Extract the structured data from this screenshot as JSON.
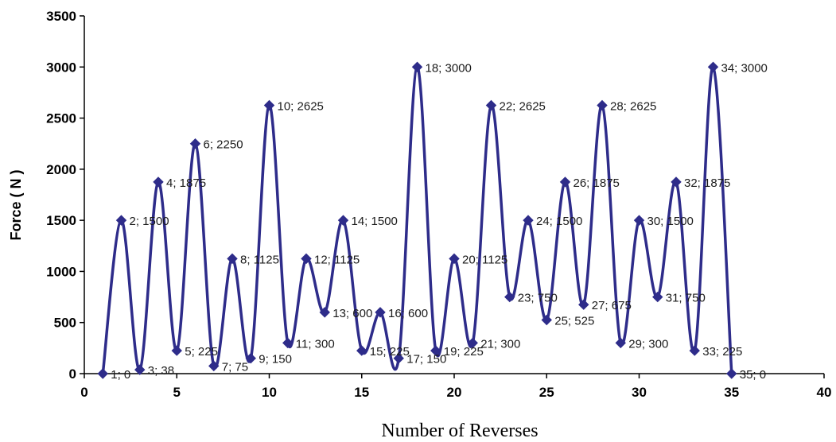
{
  "chart_data": {
    "type": "line",
    "xlabel": "Number of Reverses",
    "ylabel": "Force ( N )",
    "xlim": [
      0,
      40
    ],
    "ylim": [
      0,
      3500
    ],
    "x_ticks": [
      0,
      5,
      10,
      15,
      20,
      25,
      30,
      35,
      40
    ],
    "y_ticks": [
      0,
      500,
      1000,
      1500,
      2000,
      2500,
      3000,
      3500
    ],
    "line_style": "smoothed",
    "marker": "diamond",
    "color": "#2e2c8a",
    "grid": false,
    "legend": "none",
    "points": [
      {
        "x": 1,
        "y": 0,
        "label": "1; 0"
      },
      {
        "x": 2,
        "y": 1500,
        "label": "2; 1500"
      },
      {
        "x": 3,
        "y": 38,
        "label": "3; 38"
      },
      {
        "x": 4,
        "y": 1875,
        "label": "4; 1875"
      },
      {
        "x": 5,
        "y": 225,
        "label": "5; 225"
      },
      {
        "x": 6,
        "y": 2250,
        "label": "6; 2250"
      },
      {
        "x": 7,
        "y": 75,
        "label": "7; 75"
      },
      {
        "x": 8,
        "y": 1125,
        "label": "8; 1125"
      },
      {
        "x": 9,
        "y": 150,
        "label": "9; 150"
      },
      {
        "x": 10,
        "y": 2625,
        "label": "10; 2625"
      },
      {
        "x": 11,
        "y": 300,
        "label": "11; 300"
      },
      {
        "x": 12,
        "y": 1125,
        "label": "12; 1125"
      },
      {
        "x": 13,
        "y": 600,
        "label": "13; 600"
      },
      {
        "x": 14,
        "y": 1500,
        "label": "14; 1500"
      },
      {
        "x": 15,
        "y": 225,
        "label": "15; 225"
      },
      {
        "x": 16,
        "y": 600,
        "label": "16; 600"
      },
      {
        "x": 17,
        "y": 150,
        "label": "17; 150"
      },
      {
        "x": 18,
        "y": 3000,
        "label": "18; 3000"
      },
      {
        "x": 19,
        "y": 225,
        "label": "19; 225"
      },
      {
        "x": 20,
        "y": 1125,
        "label": "20; 1125"
      },
      {
        "x": 21,
        "y": 300,
        "label": "21; 300"
      },
      {
        "x": 22,
        "y": 2625,
        "label": "22; 2625"
      },
      {
        "x": 23,
        "y": 750,
        "label": "23; 750"
      },
      {
        "x": 24,
        "y": 1500,
        "label": "24; 1500"
      },
      {
        "x": 25,
        "y": 525,
        "label": "25; 525"
      },
      {
        "x": 26,
        "y": 1875,
        "label": "26; 1875"
      },
      {
        "x": 27,
        "y": 675,
        "label": "27; 675"
      },
      {
        "x": 28,
        "y": 2625,
        "label": "28; 2625"
      },
      {
        "x": 29,
        "y": 300,
        "label": "29; 300"
      },
      {
        "x": 30,
        "y": 1500,
        "label": "30; 1500"
      },
      {
        "x": 31,
        "y": 750,
        "label": "31; 750"
      },
      {
        "x": 32,
        "y": 1875,
        "label": "32; 1875"
      },
      {
        "x": 33,
        "y": 225,
        "label": "33; 225"
      },
      {
        "x": 34,
        "y": 3000,
        "label": "34; 3000"
      },
      {
        "x": 35,
        "y": 0,
        "label": "35; 0"
      }
    ]
  }
}
